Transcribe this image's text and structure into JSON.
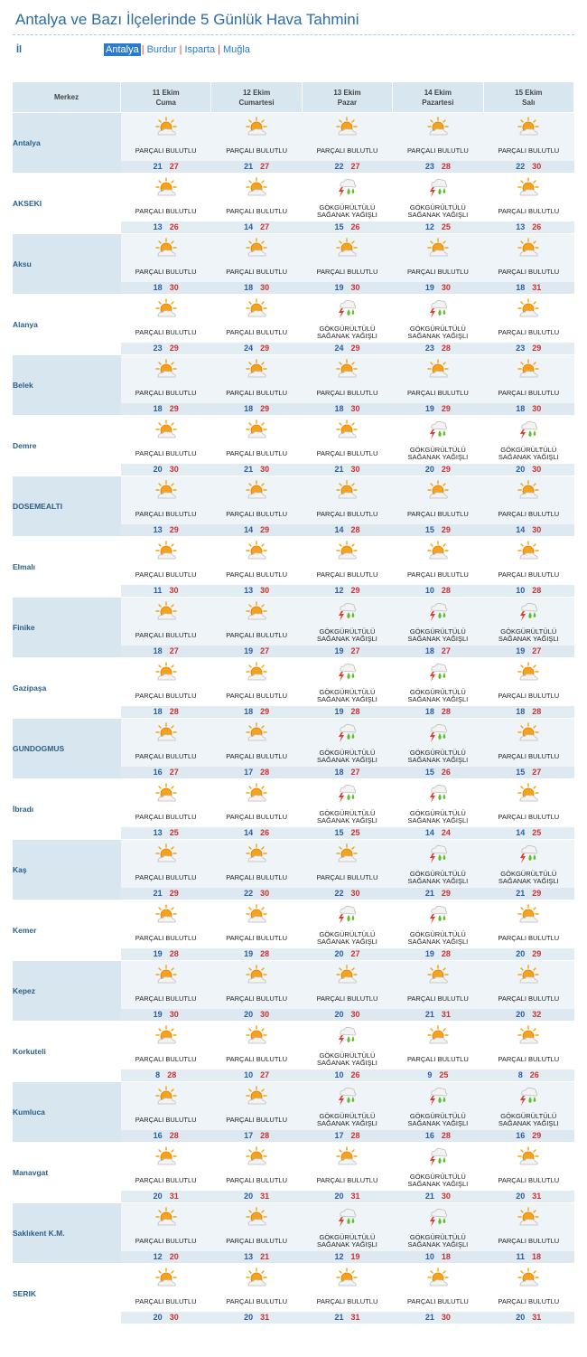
{
  "page": {
    "title": "Antalya ve Bazı İlçelerinde 5 Günlük Hava Tahmini",
    "il_label": "İl",
    "tabs": [
      {
        "label": "Antalya",
        "active": true
      },
      {
        "label": "Burdur",
        "active": false
      },
      {
        "label": "Isparta",
        "active": false
      },
      {
        "label": "Muğla",
        "active": false
      }
    ],
    "separator": "|"
  },
  "header": {
    "merkez": "Merkez",
    "days": [
      {
        "date": "11 Ekim",
        "day": "Cuma"
      },
      {
        "date": "12 Ekim",
        "day": "Cumartesi"
      },
      {
        "date": "13 Ekim",
        "day": "Pazar"
      },
      {
        "date": "14 Ekim",
        "day": "Pazartesi"
      },
      {
        "date": "15 Ekim",
        "day": "Salı"
      }
    ]
  },
  "conditions": {
    "pb": {
      "line1": "PARÇALI BULUTLU",
      "line2": "",
      "icon": "partly-cloudy-icon"
    },
    "gs": {
      "line1": "GÖKGÜRÜLTÜLÜ",
      "line2": "SAĞANAK YAĞIŞLI",
      "icon": "thunderstorm-icon"
    }
  },
  "cities": [
    {
      "name": "Antalya",
      "days": [
        {
          "c": "pb",
          "min": "21",
          "max": "27"
        },
        {
          "c": "pb",
          "min": "21",
          "max": "27"
        },
        {
          "c": "pb",
          "min": "22",
          "max": "27"
        },
        {
          "c": "pb",
          "min": "23",
          "max": "28"
        },
        {
          "c": "pb",
          "min": "22",
          "max": "30"
        }
      ]
    },
    {
      "name": "AKSEKI",
      "days": [
        {
          "c": "pb",
          "min": "13",
          "max": "26"
        },
        {
          "c": "pb",
          "min": "14",
          "max": "27"
        },
        {
          "c": "gs",
          "min": "15",
          "max": "26"
        },
        {
          "c": "gs",
          "min": "12",
          "max": "25"
        },
        {
          "c": "pb",
          "min": "13",
          "max": "26"
        }
      ]
    },
    {
      "name": "Aksu",
      "days": [
        {
          "c": "pb",
          "min": "18",
          "max": "30"
        },
        {
          "c": "pb",
          "min": "18",
          "max": "30"
        },
        {
          "c": "pb",
          "min": "19",
          "max": "30"
        },
        {
          "c": "pb",
          "min": "19",
          "max": "30"
        },
        {
          "c": "pb",
          "min": "18",
          "max": "31"
        }
      ]
    },
    {
      "name": "Alanya",
      "days": [
        {
          "c": "pb",
          "min": "23",
          "max": "29"
        },
        {
          "c": "pb",
          "min": "24",
          "max": "29"
        },
        {
          "c": "gs",
          "min": "24",
          "max": "29"
        },
        {
          "c": "gs",
          "min": "23",
          "max": "28"
        },
        {
          "c": "pb",
          "min": "23",
          "max": "29"
        }
      ]
    },
    {
      "name": "Belek",
      "days": [
        {
          "c": "pb",
          "min": "18",
          "max": "29"
        },
        {
          "c": "pb",
          "min": "18",
          "max": "29"
        },
        {
          "c": "pb",
          "min": "18",
          "max": "30"
        },
        {
          "c": "pb",
          "min": "19",
          "max": "29"
        },
        {
          "c": "pb",
          "min": "18",
          "max": "30"
        }
      ]
    },
    {
      "name": "Demre",
      "days": [
        {
          "c": "pb",
          "min": "20",
          "max": "30"
        },
        {
          "c": "pb",
          "min": "21",
          "max": "30"
        },
        {
          "c": "pb",
          "min": "21",
          "max": "30"
        },
        {
          "c": "gs",
          "min": "20",
          "max": "29"
        },
        {
          "c": "gs",
          "min": "20",
          "max": "30"
        }
      ]
    },
    {
      "name": "DOSEMEALTI",
      "days": [
        {
          "c": "pb",
          "min": "13",
          "max": "29"
        },
        {
          "c": "pb",
          "min": "14",
          "max": "29"
        },
        {
          "c": "pb",
          "min": "14",
          "max": "28"
        },
        {
          "c": "pb",
          "min": "15",
          "max": "29"
        },
        {
          "c": "pb",
          "min": "14",
          "max": "30"
        }
      ]
    },
    {
      "name": "Elmalı",
      "days": [
        {
          "c": "pb",
          "min": "11",
          "max": "30"
        },
        {
          "c": "pb",
          "min": "13",
          "max": "30"
        },
        {
          "c": "pb",
          "min": "12",
          "max": "29"
        },
        {
          "c": "pb",
          "min": "10",
          "max": "28"
        },
        {
          "c": "pb",
          "min": "10",
          "max": "28"
        }
      ]
    },
    {
      "name": "Finike",
      "days": [
        {
          "c": "pb",
          "min": "18",
          "max": "27"
        },
        {
          "c": "pb",
          "min": "19",
          "max": "27"
        },
        {
          "c": "gs",
          "min": "19",
          "max": "27"
        },
        {
          "c": "gs",
          "min": "18",
          "max": "27"
        },
        {
          "c": "gs",
          "min": "19",
          "max": "27"
        }
      ]
    },
    {
      "name": "Gazipaşa",
      "days": [
        {
          "c": "pb",
          "min": "18",
          "max": "28"
        },
        {
          "c": "pb",
          "min": "18",
          "max": "29"
        },
        {
          "c": "gs",
          "min": "19",
          "max": "28"
        },
        {
          "c": "gs",
          "min": "18",
          "max": "28"
        },
        {
          "c": "pb",
          "min": "18",
          "max": "28"
        }
      ]
    },
    {
      "name": "GUNDOGMUS",
      "days": [
        {
          "c": "pb",
          "min": "16",
          "max": "27"
        },
        {
          "c": "pb",
          "min": "17",
          "max": "28"
        },
        {
          "c": "gs",
          "min": "18",
          "max": "27"
        },
        {
          "c": "gs",
          "min": "15",
          "max": "26"
        },
        {
          "c": "pb",
          "min": "15",
          "max": "27"
        }
      ]
    },
    {
      "name": "İbradı",
      "days": [
        {
          "c": "pb",
          "min": "13",
          "max": "25"
        },
        {
          "c": "pb",
          "min": "14",
          "max": "26"
        },
        {
          "c": "gs",
          "min": "15",
          "max": "25"
        },
        {
          "c": "gs",
          "min": "14",
          "max": "24"
        },
        {
          "c": "pb",
          "min": "14",
          "max": "25"
        }
      ]
    },
    {
      "name": "Kaş",
      "days": [
        {
          "c": "pb",
          "min": "21",
          "max": "29"
        },
        {
          "c": "pb",
          "min": "22",
          "max": "30"
        },
        {
          "c": "pb",
          "min": "22",
          "max": "30"
        },
        {
          "c": "gs",
          "min": "21",
          "max": "29"
        },
        {
          "c": "gs",
          "min": "21",
          "max": "29"
        }
      ]
    },
    {
      "name": "Kemer",
      "days": [
        {
          "c": "pb",
          "min": "19",
          "max": "28"
        },
        {
          "c": "pb",
          "min": "19",
          "max": "28"
        },
        {
          "c": "gs",
          "min": "20",
          "max": "27"
        },
        {
          "c": "gs",
          "min": "19",
          "max": "28"
        },
        {
          "c": "pb",
          "min": "20",
          "max": "29"
        }
      ]
    },
    {
      "name": "Kepez",
      "days": [
        {
          "c": "pb",
          "min": "19",
          "max": "30"
        },
        {
          "c": "pb",
          "min": "20",
          "max": "30"
        },
        {
          "c": "pb",
          "min": "20",
          "max": "30"
        },
        {
          "c": "pb",
          "min": "21",
          "max": "31"
        },
        {
          "c": "pb",
          "min": "20",
          "max": "32"
        }
      ]
    },
    {
      "name": "Korkuteli",
      "days": [
        {
          "c": "pb",
          "min": "8",
          "max": "28"
        },
        {
          "c": "pb",
          "min": "10",
          "max": "27"
        },
        {
          "c": "gs",
          "min": "10",
          "max": "26"
        },
        {
          "c": "pb",
          "min": "9",
          "max": "25"
        },
        {
          "c": "pb",
          "min": "8",
          "max": "26"
        }
      ]
    },
    {
      "name": "Kumluca",
      "days": [
        {
          "c": "pb",
          "min": "16",
          "max": "28"
        },
        {
          "c": "pb",
          "min": "17",
          "max": "28"
        },
        {
          "c": "gs",
          "min": "17",
          "max": "28"
        },
        {
          "c": "gs",
          "min": "16",
          "max": "28"
        },
        {
          "c": "gs",
          "min": "16",
          "max": "29"
        }
      ]
    },
    {
      "name": "Manavgat",
      "days": [
        {
          "c": "pb",
          "min": "20",
          "max": "31"
        },
        {
          "c": "pb",
          "min": "20",
          "max": "31"
        },
        {
          "c": "pb",
          "min": "20",
          "max": "31"
        },
        {
          "c": "gs",
          "min": "21",
          "max": "30"
        },
        {
          "c": "pb",
          "min": "20",
          "max": "31"
        }
      ]
    },
    {
      "name": "Saklıkent K.M.",
      "days": [
        {
          "c": "pb",
          "min": "12",
          "max": "20"
        },
        {
          "c": "pb",
          "min": "13",
          "max": "21"
        },
        {
          "c": "gs",
          "min": "12",
          "max": "19"
        },
        {
          "c": "gs",
          "min": "10",
          "max": "18"
        },
        {
          "c": "pb",
          "min": "11",
          "max": "18"
        }
      ]
    },
    {
      "name": "SERIK",
      "days": [
        {
          "c": "pb",
          "min": "20",
          "max": "30"
        },
        {
          "c": "pb",
          "min": "20",
          "max": "31"
        },
        {
          "c": "pb",
          "min": "21",
          "max": "31"
        },
        {
          "c": "pb",
          "min": "21",
          "max": "30"
        },
        {
          "c": "pb",
          "min": "20",
          "max": "31"
        }
      ]
    }
  ],
  "colors": {
    "accent": "#2a6ca3",
    "header_bg": "#d8e6f0",
    "min_temp": "#2a5fa3",
    "max_temp": "#d03030"
  }
}
